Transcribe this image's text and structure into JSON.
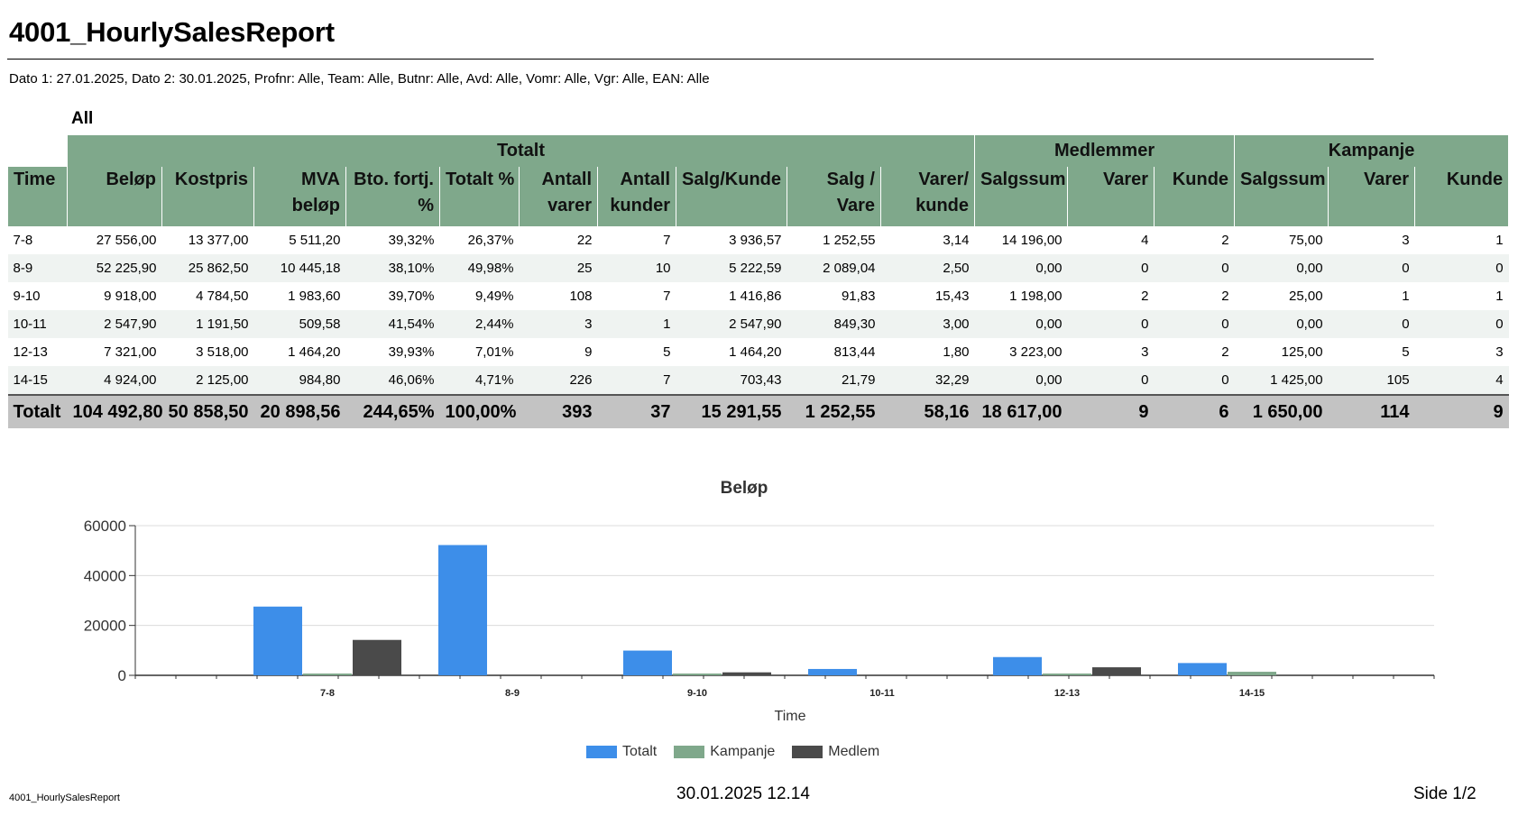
{
  "report": {
    "title": "4001_HourlySalesReport",
    "params": "Dato 1: 27.01.2025, Dato 2: 30.01.2025, Profnr: Alle, Team: Alle, Butnr: Alle, Avd: Alle, Vomr: Alle, Vgr: Alle, EAN: Alle",
    "group": "All"
  },
  "table": {
    "group_headers": [
      "Totalt",
      "Medlemmer",
      "Kampanje"
    ],
    "columns": [
      [
        "Time"
      ],
      [
        "Beløp"
      ],
      [
        "Kostpris"
      ],
      [
        "MVA",
        "beløp"
      ],
      [
        "Bto. fortj.",
        "%"
      ],
      [
        "Totalt %"
      ],
      [
        "Antall",
        "varer"
      ],
      [
        "Antall",
        "kunder"
      ],
      [
        "Salg/Kunde"
      ],
      [
        "Salg /",
        "Vare"
      ],
      [
        "Varer/",
        "kunde"
      ],
      [
        "Salgssum"
      ],
      [
        "Varer"
      ],
      [
        "Kunde"
      ],
      [
        "Salgssum"
      ],
      [
        "Varer"
      ],
      [
        "Kunde"
      ]
    ],
    "rows": [
      [
        "7-8",
        "27 556,00",
        "13 377,00",
        "5 511,20",
        "39,32%",
        "26,37%",
        "22",
        "7",
        "3 936,57",
        "1 252,55",
        "3,14",
        "14 196,00",
        "4",
        "2",
        "75,00",
        "3",
        "1"
      ],
      [
        "8-9",
        "52 225,90",
        "25 862,50",
        "10 445,18",
        "38,10%",
        "49,98%",
        "25",
        "10",
        "5 222,59",
        "2 089,04",
        "2,50",
        "0,00",
        "0",
        "0",
        "0,00",
        "0",
        "0"
      ],
      [
        "9-10",
        "9 918,00",
        "4 784,50",
        "1 983,60",
        "39,70%",
        "9,49%",
        "108",
        "7",
        "1 416,86",
        "91,83",
        "15,43",
        "1 198,00",
        "2",
        "2",
        "25,00",
        "1",
        "1"
      ],
      [
        "10-11",
        "2 547,90",
        "1 191,50",
        "509,58",
        "41,54%",
        "2,44%",
        "3",
        "1",
        "2 547,90",
        "849,30",
        "3,00",
        "0,00",
        "0",
        "0",
        "0,00",
        "0",
        "0"
      ],
      [
        "12-13",
        "7 321,00",
        "3 518,00",
        "1 464,20",
        "39,93%",
        "7,01%",
        "9",
        "5",
        "1 464,20",
        "813,44",
        "1,80",
        "3 223,00",
        "3",
        "2",
        "125,00",
        "5",
        "3"
      ],
      [
        "14-15",
        "4 924,00",
        "2 125,00",
        "984,80",
        "46,06%",
        "4,71%",
        "226",
        "7",
        "703,43",
        "21,79",
        "32,29",
        "0,00",
        "0",
        "0",
        "1 425,00",
        "105",
        "4"
      ]
    ],
    "total": [
      "Totalt",
      "104 492,80",
      "50 858,50",
      "20 898,56",
      "244,65%",
      "100,00%",
      "393",
      "37",
      "15 291,55",
      "1 252,55",
      "58,16",
      "18 617,00",
      "9",
      "6",
      "1 650,00",
      "114",
      "9"
    ]
  },
  "colors": {
    "header_bg": "#7fa88b",
    "row_alt_bg": "#eff3f1",
    "total_bg": "#c3c3c3",
    "totalt_series": "#3d8ee9",
    "kampanje_series": "#7fa88b",
    "medlem_series": "#4a4a4a"
  },
  "chart_data": {
    "type": "bar",
    "title": "Beløp",
    "xlabel": "Time",
    "ylabel": "",
    "categories": [
      "7-8",
      "8-9",
      "9-10",
      "10-11",
      "12-13",
      "14-15"
    ],
    "series": [
      {
        "name": "Totalt",
        "values": [
          27556.0,
          52225.9,
          9918.0,
          2547.9,
          7321.0,
          4924.0
        ]
      },
      {
        "name": "Kampanje",
        "values": [
          75.0,
          0.0,
          25.0,
          0.0,
          125.0,
          1425.0
        ]
      },
      {
        "name": "Medlem",
        "values": [
          14196.0,
          0.0,
          1198.0,
          0.0,
          3223.0,
          0.0
        ]
      }
    ],
    "ylim": [
      0,
      60000
    ],
    "yticks": [
      "0",
      "20000",
      "40000",
      "60000"
    ],
    "grid": true,
    "legend_position": "bottom"
  },
  "footer": {
    "report_name": "4001_HourlySalesReport",
    "datetime": "30.01.2025 12.14",
    "page": "Side 1/2"
  }
}
